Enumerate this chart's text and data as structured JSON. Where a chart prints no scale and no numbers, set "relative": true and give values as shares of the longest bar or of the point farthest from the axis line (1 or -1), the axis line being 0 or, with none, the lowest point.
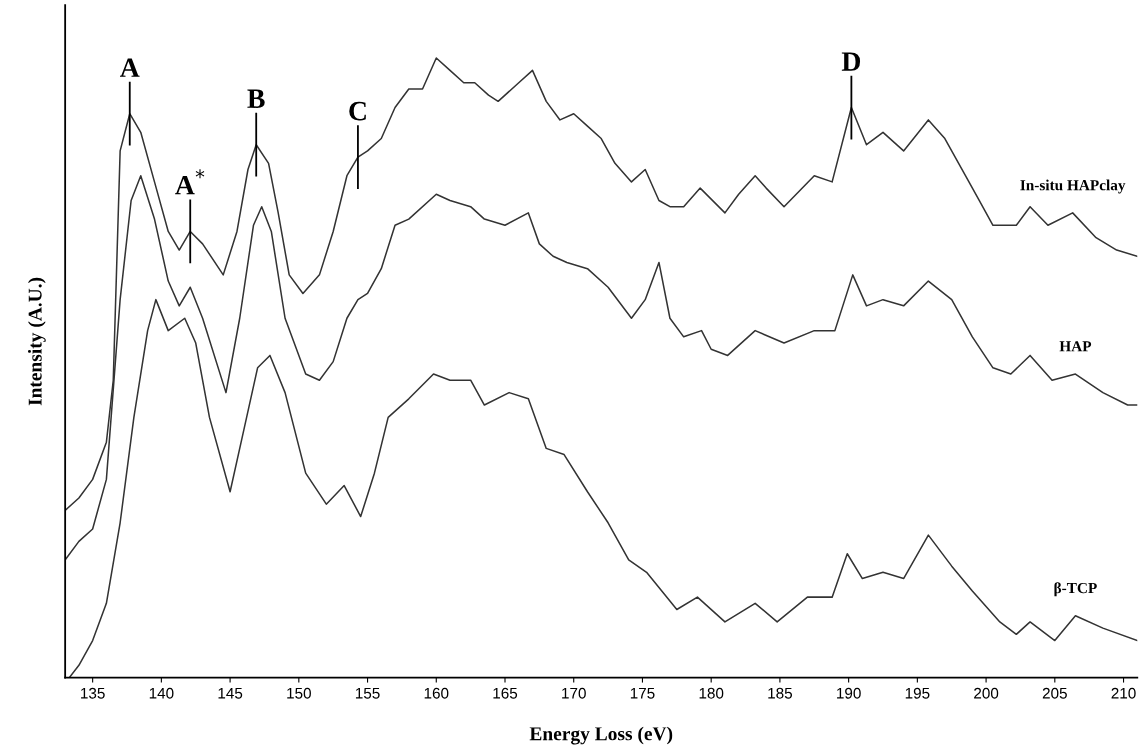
{
  "chart_data": {
    "type": "line",
    "relative": true,
    "xlabel": "Energy Loss (eV)",
    "ylabel": "Intensity (A.U.)",
    "xlim": [
      133,
      211
    ],
    "xticks": [
      135,
      140,
      145,
      150,
      155,
      160,
      165,
      170,
      175,
      180,
      185,
      190,
      195,
      200,
      205,
      210
    ],
    "grid": false,
    "legend": false,
    "marker": "none",
    "line_style": "solid",
    "series": [
      {
        "name": "In-situ HAPclay",
        "color": "#333333",
        "x": [
          133,
          134,
          135,
          136,
          136.5,
          137,
          137.7,
          138.5,
          139.5,
          140.5,
          141.3,
          142.1,
          143,
          144.5,
          145.5,
          146.3,
          146.9,
          147.8,
          148.5,
          149.3,
          150.3,
          151.5,
          152.5,
          153.5,
          154.3,
          155,
          156,
          157,
          158,
          159,
          160,
          161,
          162,
          162.8,
          163.8,
          164.5,
          166,
          167,
          168,
          169,
          170,
          171,
          172,
          173,
          174.2,
          175.2,
          176.2,
          177,
          178,
          179.2,
          181,
          182,
          183.2,
          184,
          185.3,
          187.5,
          188.8,
          190.2,
          191.3,
          192.5,
          194,
          195.8,
          197,
          198.5,
          199.5,
          200.5,
          202.2,
          203.2,
          204.5,
          206.3,
          208,
          209.5,
          211
        ],
        "values": [
          0.27,
          0.29,
          0.32,
          0.38,
          0.48,
          0.85,
          0.91,
          0.88,
          0.8,
          0.72,
          0.69,
          0.72,
          0.7,
          0.65,
          0.72,
          0.82,
          0.86,
          0.83,
          0.75,
          0.65,
          0.62,
          0.65,
          0.72,
          0.81,
          0.84,
          0.85,
          0.87,
          0.92,
          0.95,
          0.95,
          1.0,
          0.98,
          0.96,
          0.96,
          0.94,
          0.93,
          0.96,
          0.98,
          0.93,
          0.9,
          0.91,
          0.89,
          0.87,
          0.83,
          0.8,
          0.82,
          0.77,
          0.76,
          0.76,
          0.79,
          0.75,
          0.78,
          0.81,
          0.79,
          0.76,
          0.81,
          0.8,
          0.92,
          0.86,
          0.88,
          0.85,
          0.9,
          0.87,
          0.81,
          0.77,
          0.73,
          0.73,
          0.76,
          0.73,
          0.75,
          0.71,
          0.69,
          0.68
        ]
      },
      {
        "name": "HAP",
        "color": "#333333",
        "x": [
          133,
          134,
          135,
          136,
          137,
          137.8,
          138.5,
          139.5,
          140.5,
          141.3,
          142.1,
          143,
          144.7,
          145.7,
          146.7,
          147.3,
          148,
          149,
          150.5,
          151.5,
          152.5,
          153.5,
          154.3,
          155,
          156,
          157,
          158,
          160,
          161,
          162.5,
          163.5,
          165,
          166.7,
          167.5,
          168.5,
          169.5,
          171,
          172.5,
          174.2,
          175.2,
          176.2,
          177,
          178,
          179.3,
          180,
          181.2,
          183.2,
          185.3,
          187.5,
          189,
          190.3,
          191.3,
          192.5,
          194,
          195.8,
          197.5,
          199,
          200.5,
          201.8,
          203.2,
          204.8,
          206.5,
          208.5,
          210.3,
          211
        ],
        "values": [
          0.19,
          0.22,
          0.24,
          0.32,
          0.61,
          0.77,
          0.81,
          0.74,
          0.64,
          0.6,
          0.63,
          0.58,
          0.46,
          0.58,
          0.73,
          0.76,
          0.72,
          0.58,
          0.49,
          0.48,
          0.51,
          0.58,
          0.61,
          0.62,
          0.66,
          0.73,
          0.74,
          0.78,
          0.77,
          0.76,
          0.74,
          0.73,
          0.75,
          0.7,
          0.68,
          0.67,
          0.66,
          0.63,
          0.58,
          0.61,
          0.67,
          0.58,
          0.55,
          0.56,
          0.53,
          0.52,
          0.56,
          0.54,
          0.56,
          0.56,
          0.65,
          0.6,
          0.61,
          0.6,
          0.64,
          0.61,
          0.55,
          0.5,
          0.49,
          0.52,
          0.48,
          0.49,
          0.46,
          0.44,
          0.44
        ]
      },
      {
        "name": "β-TCP",
        "color": "#333333",
        "x": [
          133.3,
          134,
          135,
          136,
          137,
          138,
          139,
          139.6,
          140.5,
          141.7,
          142.5,
          143.5,
          145,
          146,
          147,
          147.9,
          149,
          150.5,
          152,
          153.3,
          154.5,
          155.5,
          156.5,
          158,
          159.8,
          161,
          162.5,
          163.5,
          165.3,
          166.7,
          168,
          169.3,
          171,
          172.5,
          174,
          175.3,
          177.5,
          179,
          181,
          183.2,
          184.8,
          187,
          188.8,
          189.9,
          191,
          192.5,
          194,
          195.8,
          197.5,
          199,
          201,
          202.2,
          203.2,
          205,
          206.5,
          208.5,
          211
        ],
        "values": [
          0.0,
          0.02,
          0.06,
          0.12,
          0.25,
          0.42,
          0.56,
          0.61,
          0.56,
          0.58,
          0.54,
          0.42,
          0.3,
          0.4,
          0.5,
          0.52,
          0.46,
          0.33,
          0.28,
          0.31,
          0.26,
          0.33,
          0.42,
          0.45,
          0.49,
          0.48,
          0.48,
          0.44,
          0.46,
          0.45,
          0.37,
          0.36,
          0.3,
          0.25,
          0.19,
          0.17,
          0.11,
          0.13,
          0.09,
          0.12,
          0.09,
          0.13,
          0.13,
          0.2,
          0.16,
          0.17,
          0.16,
          0.23,
          0.18,
          0.14,
          0.09,
          0.07,
          0.09,
          0.06,
          0.1,
          0.08,
          0.06
        ]
      }
    ],
    "annotations": [
      {
        "text": "A",
        "x": 137.7,
        "y": 0.91
      },
      {
        "text": "A$^{*}$",
        "x": 142.1,
        "y": 0.72
      },
      {
        "text": "B",
        "x": 146.9,
        "y": 0.86
      },
      {
        "text": "C",
        "x": 154.3,
        "y": 0.84
      },
      {
        "text": "D",
        "x": 190.2,
        "y": 0.92
      }
    ]
  }
}
